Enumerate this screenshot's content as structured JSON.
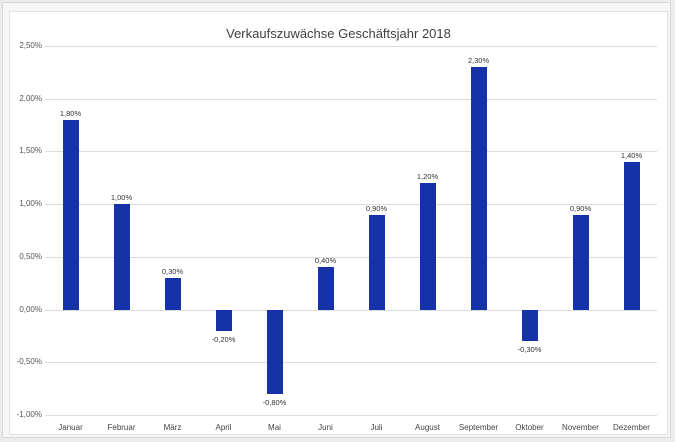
{
  "chart_data": {
    "type": "bar",
    "title": "Verkaufszuwächse Geschäftsjahr 2018",
    "xlabel": "",
    "ylabel": "",
    "categories": [
      "Januar",
      "Februar",
      "März",
      "April",
      "Mai",
      "Juni",
      "Juli",
      "August",
      "September",
      "Oktober",
      "November",
      "Dezember"
    ],
    "values": [
      1.8,
      1.0,
      0.3,
      -0.2,
      -0.8,
      0.4,
      0.9,
      1.2,
      2.3,
      -0.3,
      0.9,
      1.4
    ],
    "value_labels": [
      "1,80%",
      "1,00%",
      "0,30%",
      "-0,20%",
      "-0,80%",
      "0,40%",
      "0,90%",
      "1,20%",
      "2,30%",
      "-0,30%",
      "0,90%",
      "1,40%"
    ],
    "ylim": [
      -1.0,
      2.5
    ],
    "yticks": [
      2.5,
      2.0,
      1.5,
      1.0,
      0.5,
      0.0,
      -0.5,
      -1.0
    ],
    "ytick_labels": [
      "2,50%",
      "2,00%",
      "1,50%",
      "1,00%",
      "0,50%",
      "0,00%",
      "-0,50%",
      "-1,00%"
    ],
    "grid": true,
    "legend": "none",
    "bar_color": "#1532a8"
  }
}
